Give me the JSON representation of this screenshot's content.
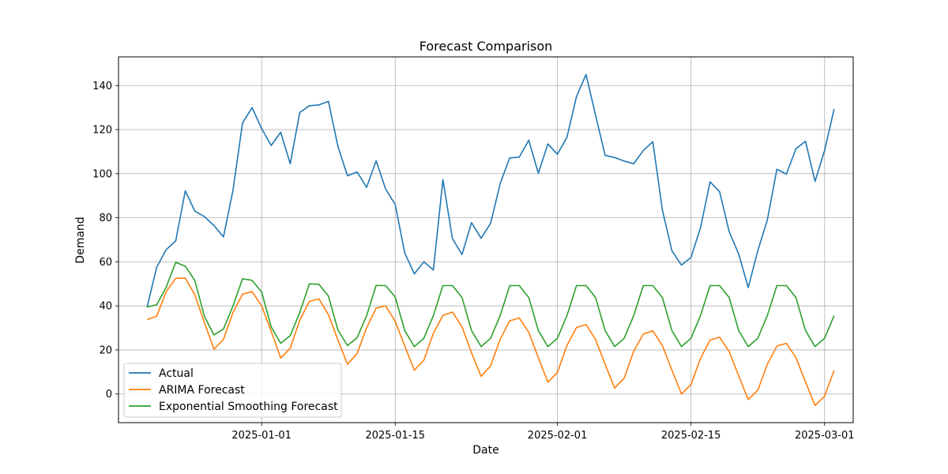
{
  "chart_data": {
    "type": "line",
    "title": "Forecast Comparison",
    "xlabel": "Date",
    "ylabel": "Demand",
    "x_start": "2024-12-20",
    "x_step_days": 1,
    "xlim": [
      "2024-12-17",
      "2025-03-04"
    ],
    "ylim": [
      -13,
      153
    ],
    "x_ticks": [
      "2025-01-01",
      "2025-01-15",
      "2025-02-01",
      "2025-02-15",
      "2025-03-01"
    ],
    "y_ticks": [
      0,
      20,
      40,
      60,
      80,
      100,
      120,
      140
    ],
    "grid": true,
    "legend_position": "lower-left",
    "series": [
      {
        "name": "Actual",
        "color": "#1f77b4",
        "values": [
          39.5,
          57.5,
          65.5,
          69.5,
          92.2,
          83,
          80.5,
          76.5,
          71.3,
          92.5,
          123,
          130,
          120.5,
          112.8,
          118.8,
          104.5,
          127.8,
          130.8,
          131.2,
          132.8,
          112.3,
          99,
          100.8,
          93.8,
          105.8,
          93,
          86,
          64,
          54.5,
          60,
          56.3,
          97.3,
          70.5,
          63.3,
          77.8,
          70.7,
          77.5,
          95.5,
          107.2,
          107.5,
          115.2,
          100.2,
          113.5,
          108.8,
          116.5,
          135,
          145,
          126.5,
          108.3,
          107.3,
          105.7,
          104.5,
          110.5,
          114.5,
          83.5,
          65,
          58.5,
          62,
          75.5,
          96.3,
          91.8,
          73.7,
          63.5,
          48.3,
          65,
          79,
          102,
          99.8,
          111.3,
          114.7,
          96.5,
          110.5,
          129.3
        ]
      },
      {
        "name": "ARIMA Forecast",
        "color": "#ff7f0e",
        "values": [
          33.8,
          35.3,
          46.5,
          52.5,
          52.6,
          45,
          32.5,
          20.3,
          24.8,
          37,
          45.3,
          46.5,
          40,
          28.5,
          16.3,
          20.8,
          33.5,
          42,
          43.2,
          36,
          24.5,
          13.5,
          18.3,
          30,
          39,
          40,
          33,
          21.8,
          10.8,
          15.3,
          27.5,
          35.7,
          37.2,
          30.5,
          18.7,
          8,
          12.8,
          24.8,
          33.2,
          34.5,
          28,
          16.5,
          5.3,
          9.8,
          22,
          30.2,
          31.5,
          24.7,
          13.5,
          2.7,
          7.2,
          19.5,
          27.2,
          28.7,
          22,
          10.8,
          0,
          4.3,
          16.2,
          24.5,
          25.8,
          19.3,
          8.2,
          -2.5,
          1.7,
          13.5,
          21.8,
          23,
          16.5,
          5.5,
          -5.2,
          -1,
          10.7
        ]
      },
      {
        "name": "Exponential Smoothing Forecast",
        "color": "#2ca02c",
        "values": [
          39.5,
          40.5,
          48.5,
          59.8,
          58,
          51.5,
          35.3,
          26.8,
          29.5,
          40,
          52.3,
          51.6,
          46.3,
          30.5,
          23,
          26.5,
          37,
          50,
          49.8,
          44.5,
          29,
          22,
          25.5,
          35.5,
          49.3,
          49.2,
          44,
          28.8,
          21.5,
          25.3,
          35.6,
          49.2,
          49.2,
          43.8,
          28.8,
          21.5,
          25.3,
          35.6,
          49.2,
          49.2,
          43.8,
          28.8,
          21.5,
          25.3,
          35.6,
          49.2,
          49.2,
          43.8,
          28.8,
          21.5,
          25.3,
          35.6,
          49.2,
          49.2,
          43.8,
          28.8,
          21.5,
          25.3,
          35.6,
          49.2,
          49.2,
          43.8,
          28.8,
          21.5,
          25.3,
          35.6,
          49.2,
          49.2,
          43.8,
          28.8,
          21.5,
          25.3,
          35.6
        ]
      }
    ]
  }
}
